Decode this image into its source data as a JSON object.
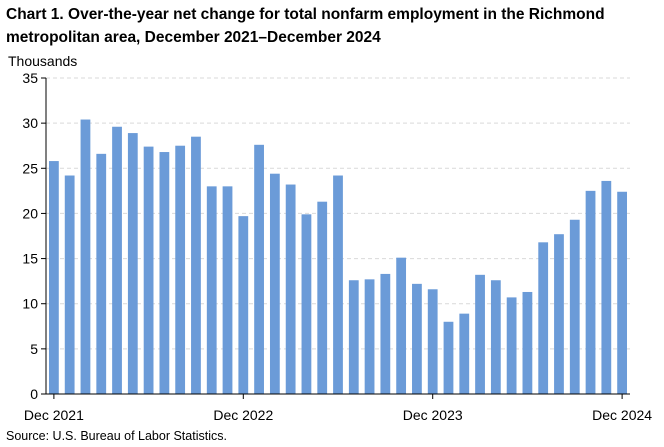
{
  "title": "Chart 1. Over-the-year net change for total nonfarm employment in the Richmond metropolitan area, December 2021–December 2024",
  "source": "Source: U.S. Bureau of Labor Statistics.",
  "colors": {
    "bar": "#6b9bd8",
    "grid": "#d9d9d9",
    "axis": "#000000"
  },
  "chart_data": {
    "type": "bar",
    "ylabel": "Thousands",
    "xlabel": "",
    "ylim": [
      0,
      35
    ],
    "yticks": [
      0,
      5,
      10,
      15,
      20,
      25,
      30,
      35
    ],
    "grid": true,
    "categories": [
      "Dec 2021",
      "Jan 2022",
      "Feb 2022",
      "Mar 2022",
      "Apr 2022",
      "May 2022",
      "Jun 2022",
      "Jul 2022",
      "Aug 2022",
      "Sep 2022",
      "Oct 2022",
      "Nov 2022",
      "Dec 2022",
      "Jan 2023",
      "Feb 2023",
      "Mar 2023",
      "Apr 2023",
      "May 2023",
      "Jun 2023",
      "Jul 2023",
      "Aug 2023",
      "Sep 2023",
      "Oct 2023",
      "Nov 2023",
      "Dec 2023",
      "Jan 2024",
      "Feb 2024",
      "Mar 2024",
      "Apr 2024",
      "May 2024",
      "Jun 2024",
      "Jul 2024",
      "Aug 2024",
      "Sep 2024",
      "Oct 2024",
      "Nov 2024",
      "Dec 2024"
    ],
    "values": [
      25.8,
      24.2,
      30.4,
      26.6,
      29.6,
      28.9,
      27.4,
      26.8,
      27.5,
      28.5,
      23.0,
      23.0,
      19.7,
      27.6,
      24.4,
      23.2,
      19.9,
      21.3,
      24.2,
      12.6,
      12.7,
      13.3,
      15.1,
      12.2,
      11.6,
      8.0,
      8.9,
      13.2,
      12.6,
      10.7,
      11.3,
      16.8,
      17.7,
      19.3,
      22.5,
      23.6,
      22.4
    ],
    "xtick_labels": [
      {
        "index": 0,
        "label": "Dec 2021"
      },
      {
        "index": 12,
        "label": "Dec 2022"
      },
      {
        "index": 24,
        "label": "Dec 2023"
      },
      {
        "index": 36,
        "label": "Dec 2024"
      }
    ]
  }
}
